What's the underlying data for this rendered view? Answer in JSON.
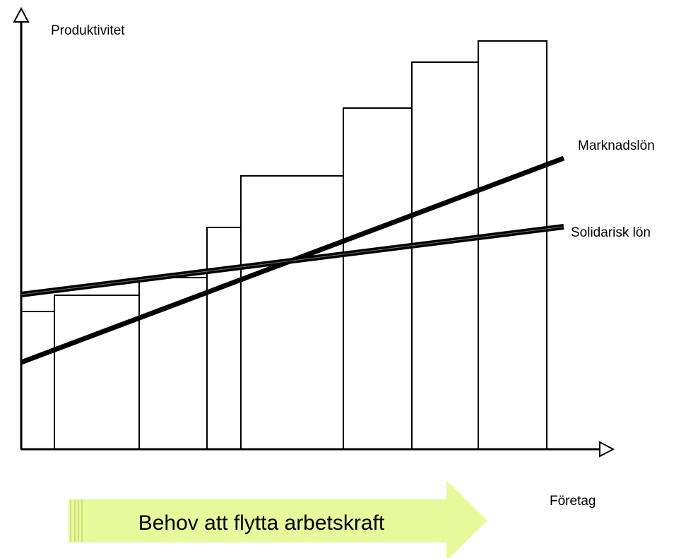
{
  "y_axis_label": "Produktivitet",
  "x_axis_label": "Företag",
  "lines": [
    {
      "label": "Marknadslön"
    },
    {
      "label": "Solidarisk lön"
    }
  ],
  "arrow_label": "Behov att flytta arbetskraft"
}
